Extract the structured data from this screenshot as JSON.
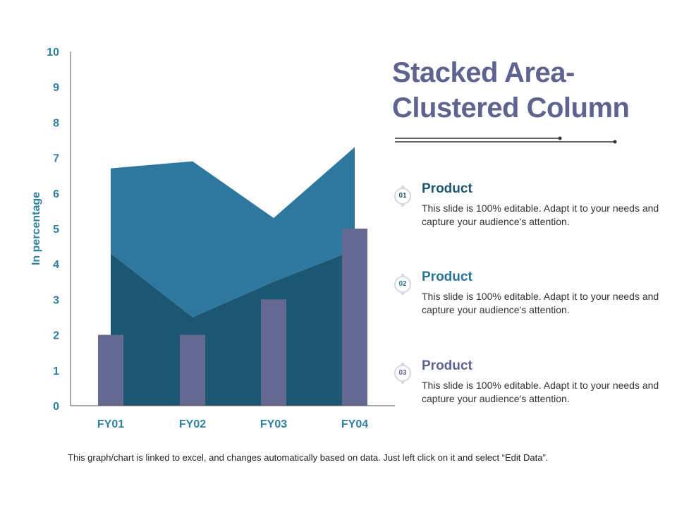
{
  "colors": {
    "axis_text": "#2f7fa0",
    "area_top": "#2e789f",
    "area_bottom": "#1d5673",
    "column": "#666a93",
    "title": "#5e6390",
    "product_title_1": "#1e5570",
    "product_title_2": "#2a7399",
    "product_title_3": "#5e6390",
    "deco_line": "#333333"
  },
  "chart_data": {
    "type": "area",
    "categories": [
      "FY01",
      "FY02",
      "FY03",
      "FY04"
    ],
    "series": [
      {
        "kind": "area",
        "values": [
          4.3,
          2.5,
          3.5,
          4.4
        ]
      },
      {
        "kind": "area",
        "values": [
          2.4,
          4.4,
          1.8,
          2.9
        ]
      },
      {
        "kind": "bar",
        "values": [
          2,
          2,
          3,
          5
        ]
      }
    ],
    "ylabel": "In percentage",
    "ylim": [
      0,
      10
    ],
    "yticks": [
      0,
      1,
      2,
      3,
      4,
      5,
      6,
      7,
      8,
      9,
      10
    ],
    "grid": false
  },
  "title": "Stacked Area- Clustered Column",
  "items": [
    {
      "number": "01",
      "title": "Product",
      "text": "This slide is 100% editable. Adapt it to your needs and capture your audience's attention."
    },
    {
      "number": "02",
      "title": "Product",
      "text": "This slide is 100% editable. Adapt it to your needs and capture your audience's attention."
    },
    {
      "number": "03",
      "title": "Product",
      "text": "This slide is 100% editable. Adapt it to your needs and capture your audience's attention."
    }
  ],
  "footnote": "This graph/chart is linked to excel, and changes automatically based on data.  Just left click on it and select “Edit Data”."
}
